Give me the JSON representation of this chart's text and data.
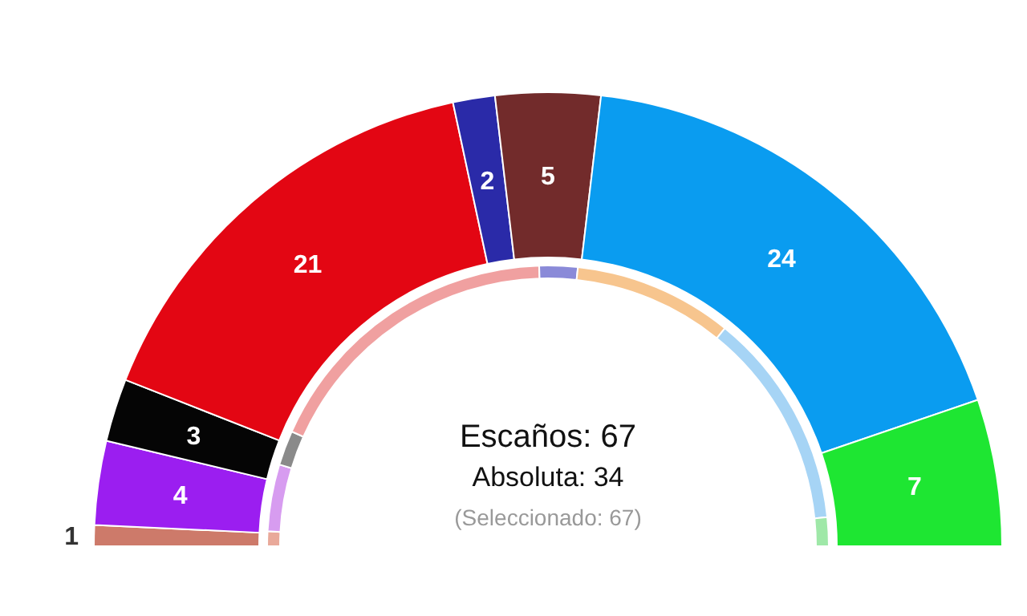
{
  "chart_data": {
    "type": "donut",
    "categories": [
      null,
      null,
      null,
      null,
      null,
      null,
      null,
      null
    ],
    "annotations": [
      "Escaños: 67",
      "Absoluta: 34",
      "(Seleccionado: 67)"
    ],
    "series": [
      {
        "values": [
          1,
          4,
          3,
          21,
          2,
          5,
          24,
          7
        ],
        "value_labels": [
          "1",
          "4",
          "3",
          "21",
          "2",
          "5",
          "24",
          "7"
        ],
        "colors": [
          "#cd7a6a",
          "#9b1ef0",
          "#050505",
          "#e30613",
          "#2a2aa8",
          "#722b2b",
          "#0a9cf0",
          "#1ee632"
        ]
      },
      {
        "values": [
          1.7,
          7.7,
          4,
          35.6,
          4.4,
          18.3,
          25,
          3.3
        ],
        "colors": [
          "#e9a99a",
          "#d79cf0",
          "#8a8a8a",
          "#f0a0a0",
          "#8a8ad8",
          "#f7c58e",
          "#a6d4f5",
          "#9fe8a8"
        ]
      }
    ]
  }
}
